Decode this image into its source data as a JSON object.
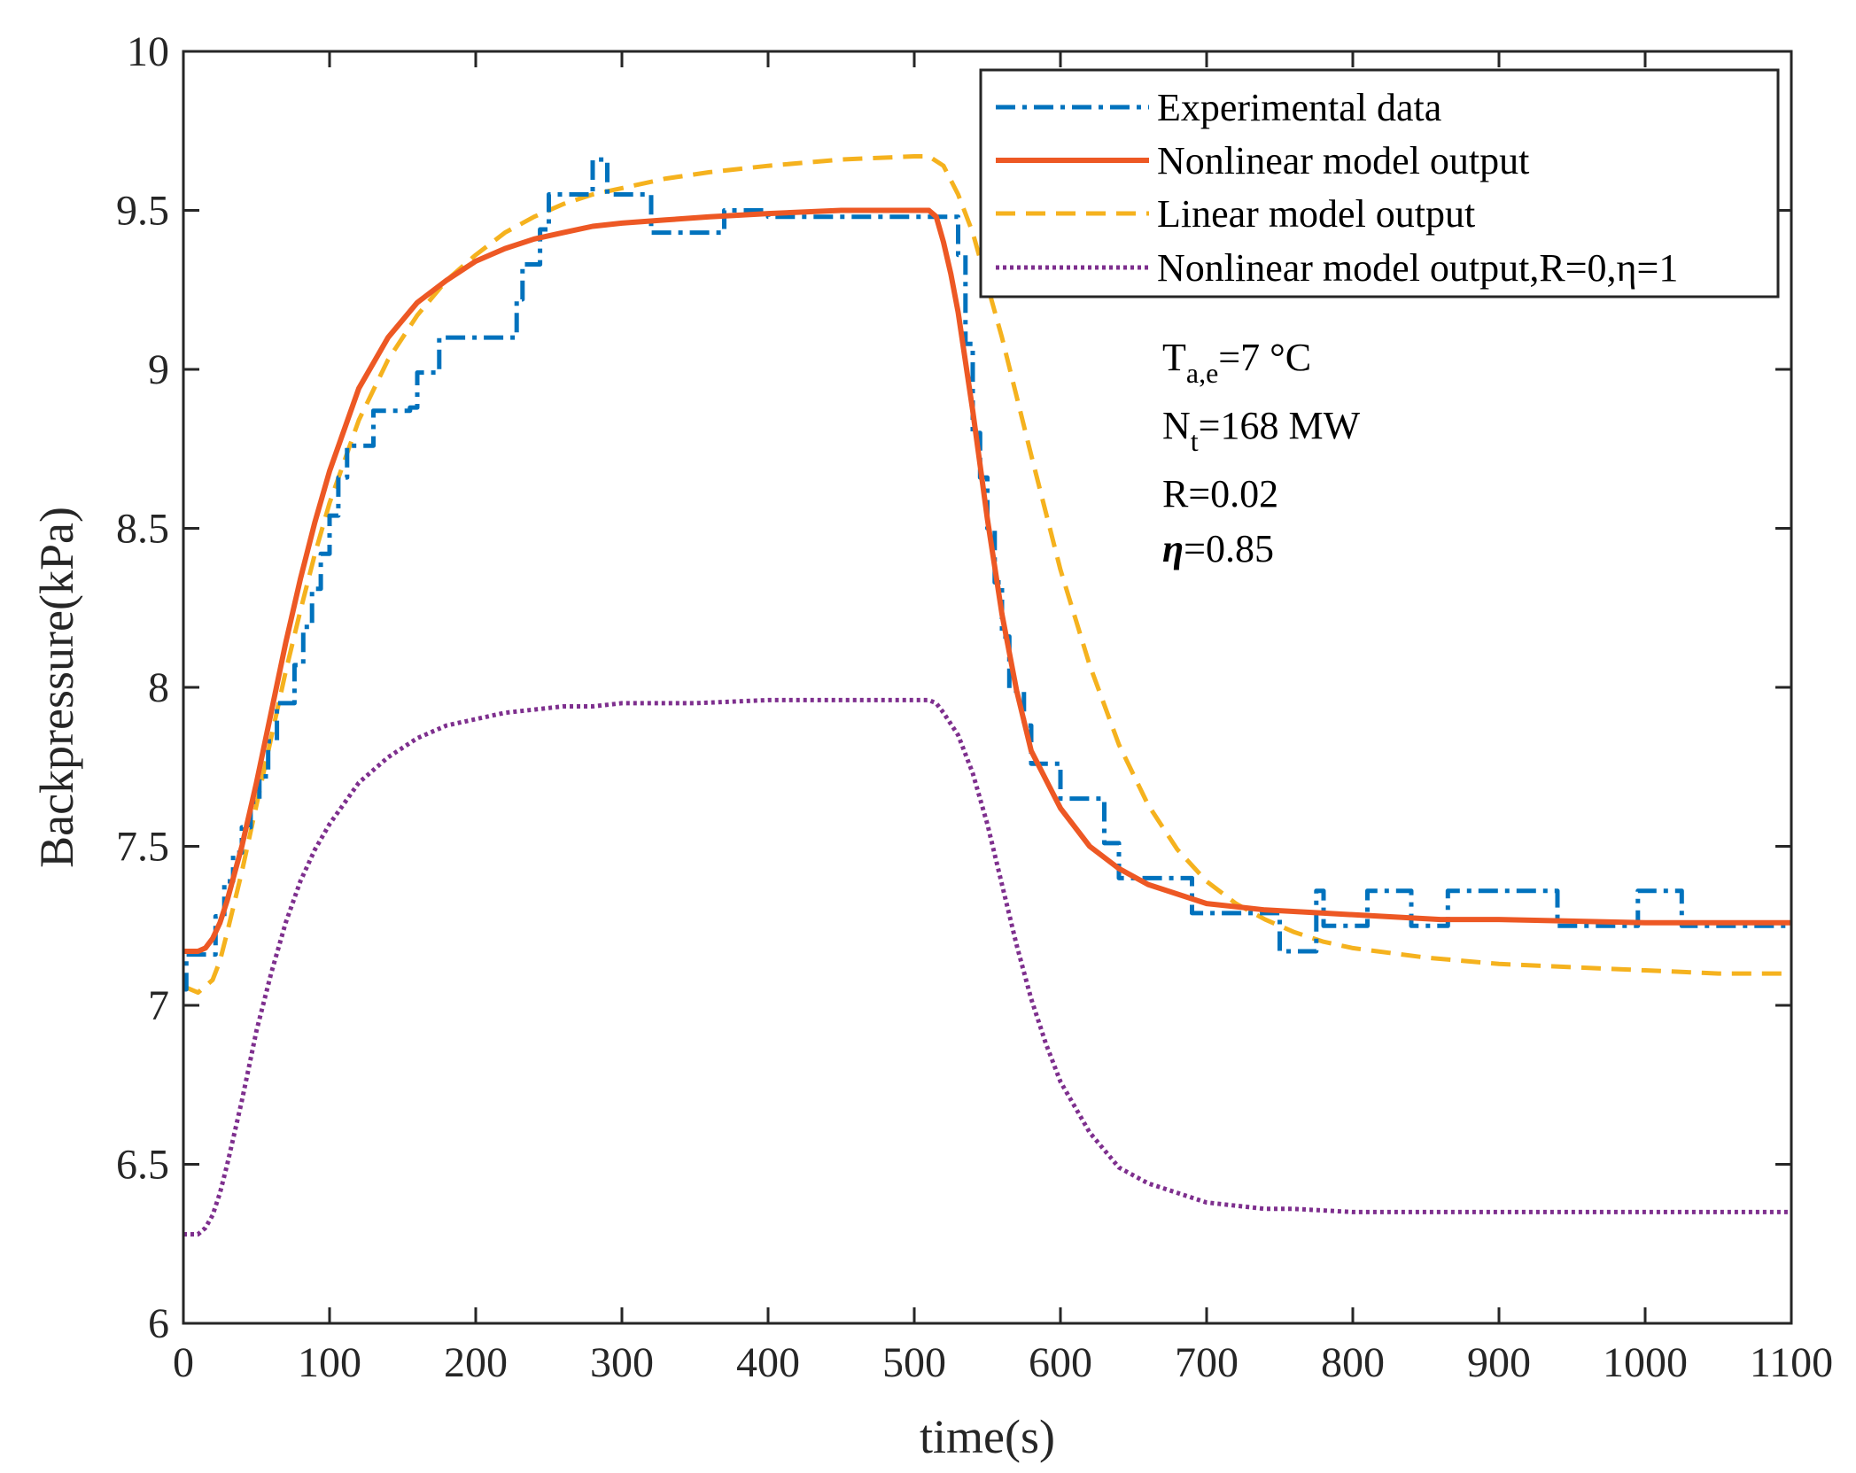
{
  "chart_data": {
    "type": "line",
    "title": "",
    "xlabel": "time(s)",
    "ylabel": "Backpressure(kPa)",
    "xlim": [
      0,
      1100
    ],
    "ylim": [
      6,
      10
    ],
    "xticks": [
      0,
      100,
      200,
      300,
      400,
      500,
      600,
      700,
      800,
      900,
      1000,
      1100
    ],
    "yticks": [
      6,
      6.5,
      7,
      7.5,
      8,
      8.5,
      9,
      9.5,
      10
    ],
    "xtick_labels": [
      "0",
      "100",
      "200",
      "300",
      "400",
      "500",
      "600",
      "700",
      "800",
      "900",
      "1000",
      "1100"
    ],
    "ytick_labels": [
      "6",
      "6.5",
      "7",
      "7.5",
      "8",
      "8.5",
      "9",
      "9.5",
      "10"
    ],
    "grid": false,
    "legend_position": "top-right",
    "series": [
      {
        "name": "Experimental data",
        "style": "dash-dot",
        "color": "#0072BD",
        "step": true,
        "x": [
          0,
          2,
          22,
          28,
          34,
          40,
          46,
          52,
          58,
          64,
          76,
          82,
          88,
          94,
          100,
          106,
          112,
          118,
          124,
          130,
          155,
          160,
          170,
          175,
          188,
          192,
          228,
          232,
          240,
          244,
          250,
          254,
          262,
          280,
          284,
          290,
          294,
          320,
          325,
          370,
          380,
          400,
          410,
          530,
          535,
          540,
          545,
          550,
          555,
          560,
          565,
          570,
          575,
          580,
          590,
          600,
          620,
          630,
          640,
          650,
          670,
          690,
          700,
          740,
          750,
          775,
          780,
          785,
          810,
          840,
          850,
          865,
          870,
          940,
          950,
          995,
          1000,
          1025,
          1030,
          1100
        ],
        "values": [
          7.05,
          7.16,
          7.28,
          7.39,
          7.48,
          7.56,
          7.64,
          7.72,
          7.83,
          7.95,
          8.07,
          8.19,
          8.31,
          8.42,
          8.54,
          8.66,
          8.76,
          8.76,
          8.76,
          8.87,
          8.88,
          8.99,
          8.99,
          9.1,
          9.1,
          9.1,
          9.22,
          9.33,
          9.33,
          9.44,
          9.55,
          9.55,
          9.55,
          9.66,
          9.66,
          9.55,
          9.55,
          9.43,
          9.43,
          9.5,
          9.5,
          9.48,
          9.48,
          9.36,
          9.08,
          8.8,
          8.66,
          8.5,
          8.33,
          8.16,
          7.99,
          7.99,
          7.88,
          7.76,
          7.76,
          7.65,
          7.65,
          7.51,
          7.4,
          7.4,
          7.4,
          7.29,
          7.29,
          7.29,
          7.17,
          7.36,
          7.25,
          7.25,
          7.36,
          7.25,
          7.25,
          7.36,
          7.36,
          7.25,
          7.25,
          7.36,
          7.36,
          7.25,
          7.25,
          7.25
        ]
      },
      {
        "name": "Nonlinear model output",
        "style": "solid",
        "color": "#ED5824",
        "x": [
          0,
          10,
          15,
          20,
          25,
          30,
          40,
          50,
          60,
          70,
          80,
          90,
          100,
          120,
          140,
          160,
          180,
          200,
          220,
          240,
          260,
          280,
          300,
          330,
          360,
          400,
          450,
          500,
          510,
          515,
          520,
          525,
          530,
          540,
          550,
          560,
          570,
          580,
          600,
          620,
          640,
          660,
          680,
          700,
          740,
          780,
          820,
          860,
          900,
          1000,
          1100
        ],
        "values": [
          7.17,
          7.17,
          7.18,
          7.21,
          7.26,
          7.33,
          7.5,
          7.7,
          7.92,
          8.14,
          8.34,
          8.52,
          8.68,
          8.94,
          9.1,
          9.21,
          9.28,
          9.34,
          9.38,
          9.41,
          9.43,
          9.45,
          9.46,
          9.47,
          9.48,
          9.49,
          9.5,
          9.5,
          9.5,
          9.48,
          9.4,
          9.3,
          9.18,
          8.87,
          8.53,
          8.23,
          7.99,
          7.8,
          7.62,
          7.5,
          7.43,
          7.38,
          7.35,
          7.32,
          7.3,
          7.29,
          7.28,
          7.27,
          7.27,
          7.26,
          7.26
        ]
      },
      {
        "name": "Linear model output",
        "style": "dashed",
        "color": "#F5B21E",
        "x": [
          0,
          10,
          20,
          25,
          30,
          40,
          50,
          60,
          70,
          80,
          90,
          100,
          120,
          140,
          160,
          180,
          200,
          220,
          240,
          260,
          280,
          300,
          330,
          360,
          400,
          450,
          500,
          510,
          520,
          530,
          540,
          560,
          580,
          600,
          620,
          640,
          660,
          680,
          700,
          720,
          740,
          760,
          780,
          800,
          850,
          900,
          950,
          1000,
          1050,
          1100
        ],
        "values": [
          7.06,
          7.04,
          7.08,
          7.14,
          7.23,
          7.42,
          7.63,
          7.84,
          8.05,
          8.24,
          8.42,
          8.58,
          8.84,
          9.03,
          9.17,
          9.28,
          9.36,
          9.43,
          9.48,
          9.52,
          9.55,
          9.57,
          9.6,
          9.62,
          9.64,
          9.66,
          9.67,
          9.67,
          9.64,
          9.55,
          9.43,
          9.1,
          8.73,
          8.37,
          8.07,
          7.82,
          7.63,
          7.49,
          7.39,
          7.32,
          7.27,
          7.23,
          7.2,
          7.18,
          7.15,
          7.13,
          7.12,
          7.11,
          7.1,
          7.1
        ]
      },
      {
        "name": "Nonlinear model output,R=0,η=1",
        "style": "dotted",
        "color": "#7E2F8E",
        "x": [
          0,
          10,
          15,
          20,
          25,
          30,
          35,
          40,
          45,
          50,
          60,
          70,
          80,
          90,
          100,
          120,
          140,
          160,
          180,
          200,
          220,
          240,
          260,
          280,
          300,
          350,
          400,
          450,
          500,
          510,
          515,
          520,
          530,
          540,
          550,
          560,
          570,
          580,
          590,
          600,
          620,
          640,
          660,
          680,
          700,
          720,
          740,
          760,
          800,
          900,
          1000,
          1100
        ],
        "values": [
          6.28,
          6.28,
          6.3,
          6.34,
          6.41,
          6.5,
          6.6,
          6.7,
          6.81,
          6.92,
          7.1,
          7.26,
          7.39,
          7.49,
          7.57,
          7.7,
          7.78,
          7.84,
          7.88,
          7.9,
          7.92,
          7.93,
          7.94,
          7.94,
          7.95,
          7.95,
          7.96,
          7.96,
          7.96,
          7.96,
          7.95,
          7.92,
          7.85,
          7.73,
          7.57,
          7.38,
          7.19,
          7.02,
          6.88,
          6.76,
          6.6,
          6.49,
          6.44,
          6.41,
          6.38,
          6.37,
          6.36,
          6.36,
          6.35,
          6.35,
          6.35,
          6.35
        ]
      }
    ],
    "annotations": {
      "ta": {
        "main": "T",
        "sub": "a,e",
        "rest": "=7 °C"
      },
      "nt": {
        "main": "N",
        "sub": "t",
        "rest": "=168 MW"
      },
      "r": "R=0.02",
      "eta": {
        "symbol": "η",
        "rest": "=0.85"
      }
    }
  }
}
